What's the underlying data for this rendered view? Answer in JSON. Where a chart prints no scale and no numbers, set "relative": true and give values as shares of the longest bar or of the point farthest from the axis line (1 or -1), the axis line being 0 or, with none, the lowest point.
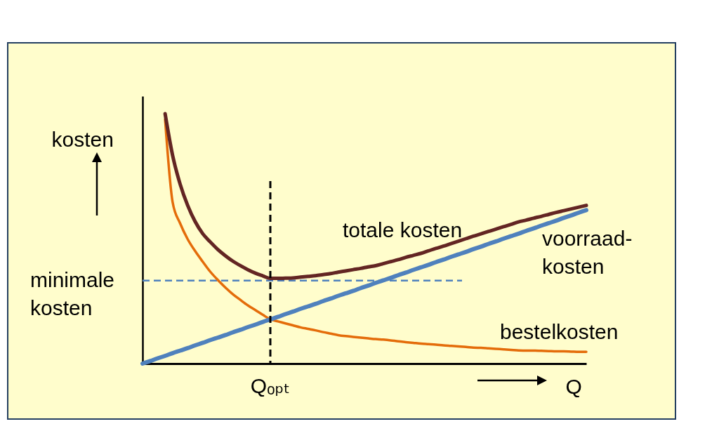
{
  "chart_data": {
    "type": "line",
    "relative": true,
    "ylabel": "kosten",
    "xlabel": "Q",
    "categories": [
      null,
      null,
      null,
      null,
      null,
      null,
      null,
      null,
      null,
      null,
      null,
      null,
      null,
      null,
      null,
      null,
      null,
      null,
      null,
      null,
      null,
      null,
      null,
      null,
      null,
      null,
      null,
      null,
      null,
      null,
      null,
      null,
      null,
      null,
      null,
      null,
      null,
      null,
      null,
      null,
      null,
      null,
      null,
      null,
      null,
      null,
      null,
      null,
      null,
      null,
      null,
      null,
      null,
      null,
      null,
      null,
      null,
      null,
      null,
      null
    ],
    "series": [
      {
        "name": "bestelkosten",
        "color": "#e46c0a",
        "values": [
          null,
          null,
          null,
          0.977,
          0.646,
          0.561,
          0.498,
          0.45,
          0.408,
          0.368,
          0.335,
          0.305,
          0.278,
          0.255,
          0.233,
          0.214,
          0.195,
          0.177,
          0.169,
          0.161,
          0.153,
          0.145,
          0.139,
          0.133,
          0.126,
          0.12,
          0.114,
          0.11,
          0.107,
          0.104,
          0.101,
          0.098,
          0.096,
          0.093,
          0.089,
          0.086,
          0.083,
          0.08,
          0.078,
          0.076,
          0.073,
          0.071,
          0.069,
          0.067,
          0.064,
          0.063,
          0.061,
          0.059,
          0.057,
          0.055,
          0.053,
          0.052,
          0.052,
          0.051,
          0.05,
          0.049,
          0.049,
          0.048,
          0.047,
          0.047
        ]
      },
      {
        "name": "totale kosten",
        "color": "#632523",
        "values": [
          null,
          null,
          null,
          1,
          0.833,
          0.718,
          0.633,
          0.568,
          0.52,
          0.487,
          0.457,
          0.432,
          0.41,
          0.392,
          0.376,
          0.362,
          0.351,
          0.341,
          0.341,
          0.342,
          0.343,
          0.346,
          0.349,
          0.352,
          0.356,
          0.36,
          0.366,
          0.371,
          0.376,
          0.381,
          0.387,
          0.392,
          0.4,
          0.408,
          0.416,
          0.425,
          0.433,
          0.441,
          0.451,
          0.461,
          0.47,
          0.48,
          0.49,
          0.5,
          0.51,
          0.519,
          0.529,
          0.538,
          0.548,
          0.557,
          0.567,
          0.574,
          0.582,
          0.589,
          0.597,
          0.605,
          0.612,
          0.619,
          0.626,
          0.633
        ]
      },
      {
        "name": "voorraad-\nkosten",
        "color": "#4f81bd",
        "values": [
          0,
          0.01,
          0.021,
          0.031,
          0.042,
          0.052,
          0.062,
          0.073,
          0.083,
          0.094,
          0.104,
          0.114,
          0.125,
          0.135,
          0.146,
          0.156,
          0.167,
          0.177,
          0.187,
          0.198,
          0.208,
          0.219,
          0.229,
          0.239,
          0.25,
          0.26,
          0.271,
          0.281,
          0.291,
          0.302,
          0.312,
          0.323,
          0.333,
          0.343,
          0.354,
          0.364,
          0.375,
          0.385,
          0.395,
          0.406,
          0.416,
          0.427,
          0.437,
          0.447,
          0.458,
          0.468,
          0.479,
          0.489,
          0.5,
          0.51,
          0.52,
          0.531,
          0.541,
          0.552,
          0.562,
          0.572,
          0.583,
          0.593,
          0.604,
          0.614
        ]
      }
    ],
    "ref_lines": [
      {
        "axis": "y",
        "value": 0.332,
        "label": "minimale\nkosten",
        "color": "#4f81bd",
        "line_style": "dashed"
      }
    ],
    "annotations": [
      "Qₒₚₜ"
    ]
  }
}
